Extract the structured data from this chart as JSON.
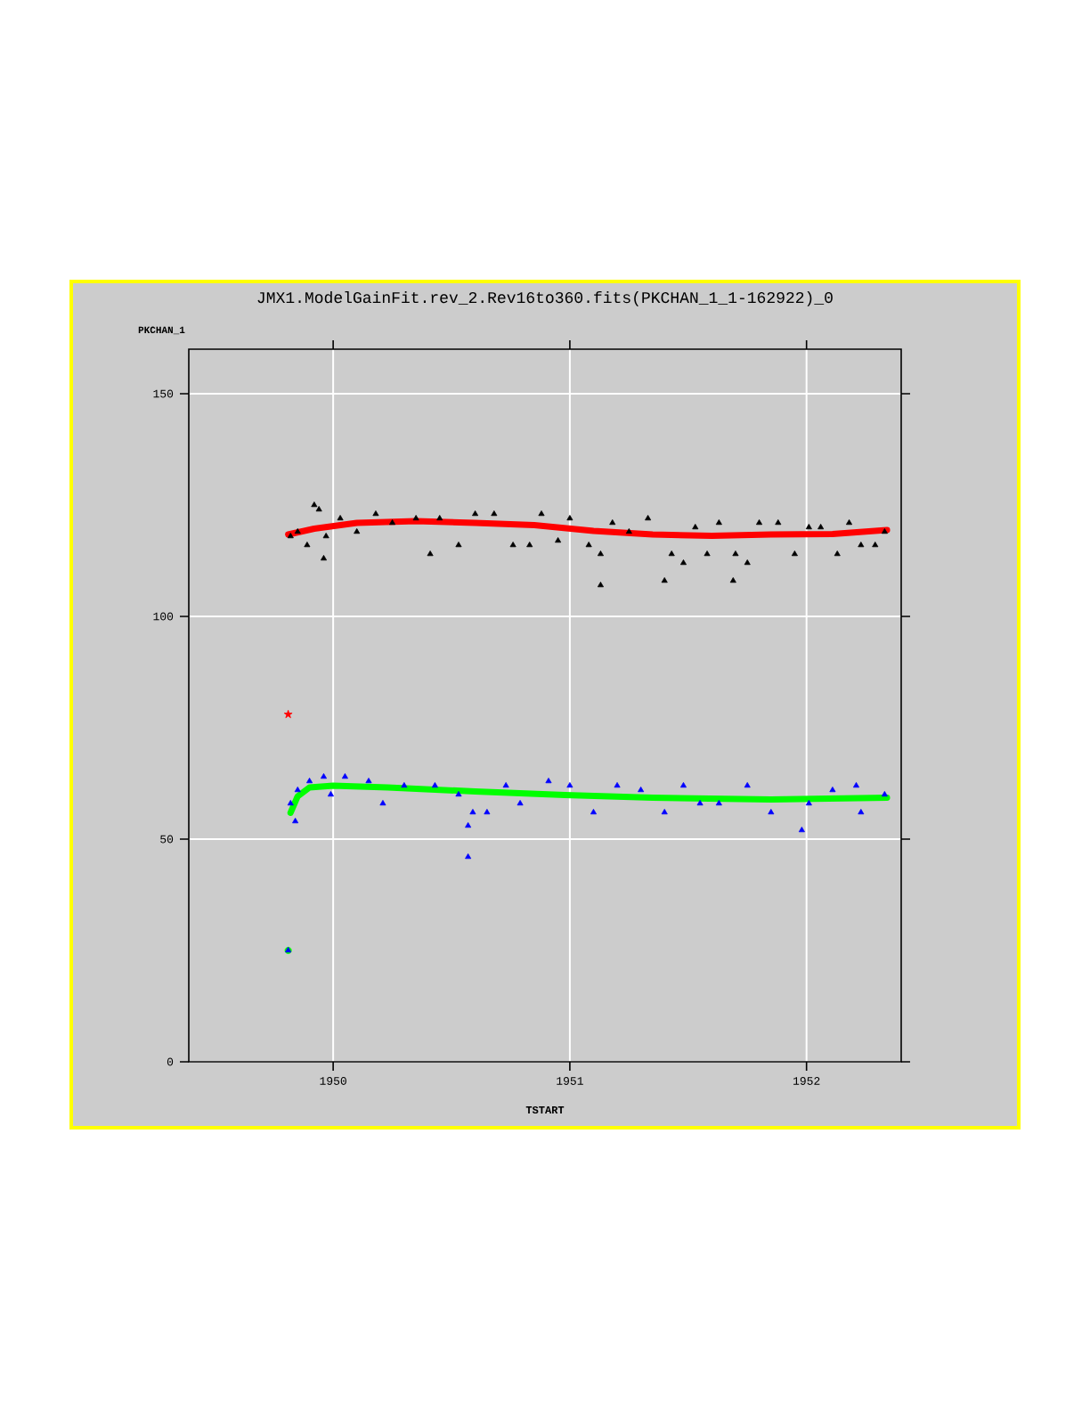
{
  "chart_data": {
    "type": "scatter",
    "title": "JMX1.ModelGainFit.rev_2.Rev16to360.fits(PKCHAN_1_1-162922)_0",
    "xlabel": "TSTART",
    "ylabel": "PKCHAN_1",
    "xlim": [
      1949.39,
      1952.4
    ],
    "ylim": [
      0,
      160
    ],
    "xticks": [
      1950,
      1951,
      1952
    ],
    "yticks": [
      0,
      50,
      100,
      150
    ],
    "grid": true,
    "series": [
      {
        "color": "#00ff00",
        "marker": "circle",
        "x": [
          1949.81
        ],
        "values": [
          25
        ]
      },
      {
        "color": "#000000",
        "marker": "triangle",
        "x": [
          1949.82,
          1949.85,
          1949.89,
          1949.92,
          1949.94,
          1949.96,
          1949.97,
          1950.03,
          1950.1,
          1950.18,
          1950.25,
          1950.35,
          1950.41,
          1950.45,
          1950.53,
          1950.6,
          1950.68,
          1950.76,
          1950.83,
          1950.88,
          1950.95,
          1951.0,
          1951.08,
          1951.13,
          1951.13,
          1951.18,
          1951.25,
          1951.33,
          1951.4,
          1951.43,
          1951.48,
          1951.53,
          1951.58,
          1951.63,
          1951.69,
          1951.7,
          1951.75,
          1951.8,
          1951.88,
          1951.95,
          1952.01,
          1952.06,
          1952.13,
          1952.18,
          1952.23,
          1952.29,
          1952.33
        ],
        "values": [
          118,
          119,
          116,
          125,
          124,
          113,
          118,
          122,
          119,
          123,
          121,
          122,
          114,
          122,
          116,
          123,
          123,
          116,
          116,
          123,
          117,
          122,
          116,
          107,
          114,
          121,
          119,
          122,
          108,
          114,
          112,
          120,
          114,
          121,
          108,
          114,
          112,
          121,
          121,
          114,
          120,
          120,
          114,
          121,
          116,
          116,
          119
        ]
      },
      {
        "color": "#0000ff",
        "marker": "triangle",
        "x": [
          1949.81,
          1949.82,
          1949.84,
          1949.85,
          1949.9,
          1949.96,
          1949.99,
          1950.05,
          1950.15,
          1950.21,
          1950.3,
          1950.43,
          1950.53,
          1950.57,
          1950.57,
          1950.59,
          1950.65,
          1950.73,
          1950.79,
          1950.91,
          1951.0,
          1951.1,
          1951.2,
          1951.3,
          1951.4,
          1951.48,
          1951.55,
          1951.63,
          1951.75,
          1951.85,
          1951.98,
          1952.01,
          1952.11,
          1952.21,
          1952.23,
          1952.33
        ],
        "values": [
          25,
          58,
          54,
          61,
          63,
          64,
          60,
          64,
          63,
          58,
          62,
          62,
          60,
          53,
          46,
          56,
          56,
          62,
          58,
          63,
          62,
          56,
          62,
          61,
          56,
          62,
          58,
          58,
          62,
          56,
          52,
          58,
          61,
          62,
          56,
          60
        ]
      },
      {
        "type": "line",
        "color": "#ff0000",
        "x": [
          1949.81,
          1949.92,
          1950.1,
          1950.35,
          1950.6,
          1950.85,
          1951.1,
          1951.35,
          1951.6,
          1951.85,
          1952.11,
          1952.34
        ],
        "values": [
          118.4,
          119.7,
          121,
          121.4,
          121,
          120.5,
          119.2,
          118.4,
          118.1,
          118.4,
          118.5,
          119.4
        ]
      },
      {
        "type": "line",
        "color": "#00ff00",
        "x": [
          1949.82,
          1949.85,
          1949.9,
          1950.0,
          1950.23,
          1950.6,
          1950.98,
          1951.35,
          1951.85,
          1952.34
        ],
        "values": [
          55.9,
          59.6,
          61.6,
          62,
          61.6,
          60.7,
          59.9,
          59.3,
          58.9,
          59.3
        ]
      },
      {
        "color": "#ff0000",
        "marker": "star",
        "x": [
          1949.81
        ],
        "values": [
          78
        ]
      }
    ]
  }
}
